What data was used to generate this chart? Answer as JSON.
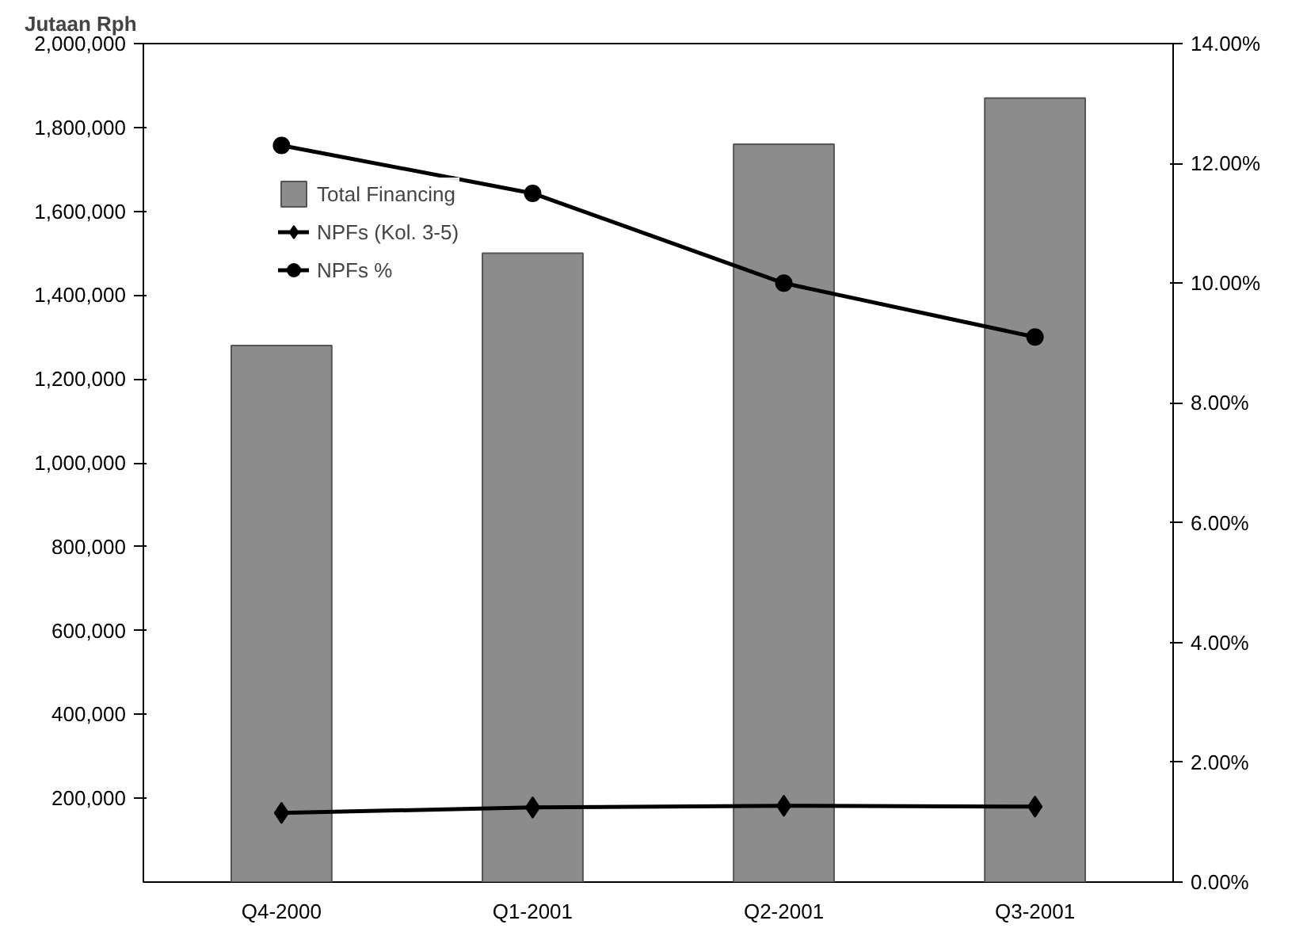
{
  "chart_data": {
    "type": "bar",
    "ylabel": "Jutaan Rph",
    "categories": [
      "Q4-2000",
      "Q1-2001",
      "Q2-2001",
      "Q3-2001"
    ],
    "series": [
      {
        "name": "Total Financing",
        "color": "#8c8c8c",
        "values": [
          1280000,
          1500000,
          1760000,
          1870000
        ]
      },
      {
        "name": "NPFs (Kol. 3-5)",
        "type": "line",
        "color": "#000000",
        "marker": "diamond",
        "values": [
          165000,
          178000,
          182000,
          180000
        ]
      },
      {
        "name": "NPFs %",
        "type": "line",
        "axis": "y2",
        "color": "#000000",
        "marker": "circle",
        "values": [
          12.3,
          11.5,
          10.0,
          9.1
        ]
      }
    ],
    "ylim": [
      0,
      2000000
    ],
    "yticks": [
      {
        "value": 200000,
        "label": "200,000"
      },
      {
        "value": 400000,
        "label": "400,000"
      },
      {
        "value": 600000,
        "label": "600,000"
      },
      {
        "value": 800000,
        "label": "800,000"
      },
      {
        "value": 1000000,
        "label": "1,000,000"
      },
      {
        "value": 1200000,
        "label": "1,200,000"
      },
      {
        "value": 1400000,
        "label": "1,400,000"
      },
      {
        "value": 1600000,
        "label": "1,600,000"
      },
      {
        "value": 1800000,
        "label": "1,800,000"
      },
      {
        "value": 2000000,
        "label": "2,000,000"
      }
    ],
    "y2lim": [
      0,
      14
    ],
    "y2ticks": [
      {
        "value": 0,
        "label": "0.00%"
      },
      {
        "value": 2,
        "label": "2.00%"
      },
      {
        "value": 4,
        "label": "4.00%"
      },
      {
        "value": 6,
        "label": "6.00%"
      },
      {
        "value": 8,
        "label": "8.00%"
      },
      {
        "value": 10,
        "label": "10.00%"
      },
      {
        "value": 12,
        "label": "12.00%"
      },
      {
        "value": 14,
        "label": "14.00%"
      }
    ],
    "legend": "top left",
    "grid": false
  }
}
